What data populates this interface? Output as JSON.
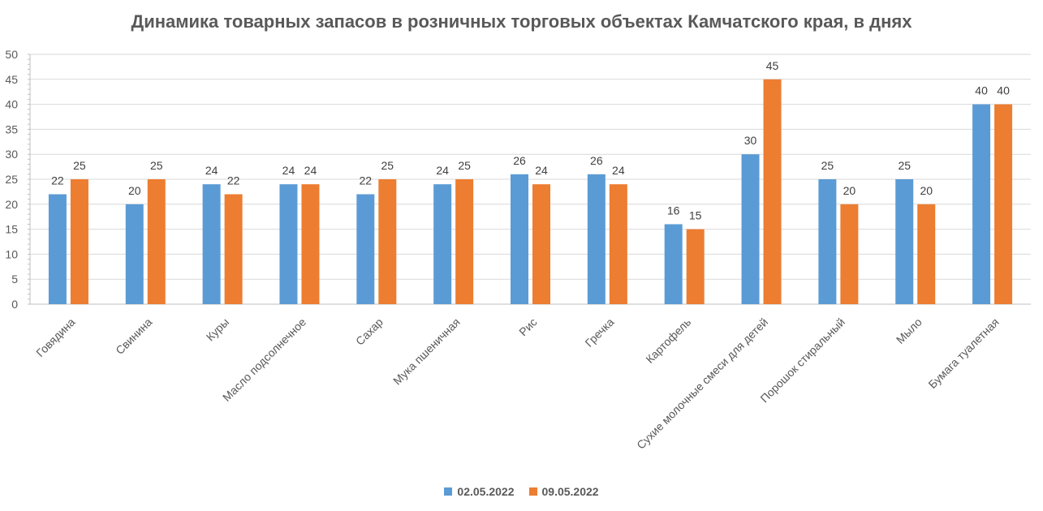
{
  "chart_data": {
    "type": "bar",
    "title": "Динамика товарных запасов в розничных торговых объектах Камчатского края, в днях",
    "xlabel": "",
    "ylabel": "",
    "ylim": [
      0,
      50
    ],
    "yticks": [
      0,
      5,
      10,
      15,
      20,
      25,
      30,
      35,
      40,
      45,
      50
    ],
    "grid": true,
    "legend_position": "bottom",
    "categories": [
      "Говядина",
      "Свинина",
      "Куры",
      "Масло подсолнечное",
      "Сахар",
      "Мука пшеничная",
      "Рис",
      "Гречка",
      "Картофель",
      "Сухие молочные смеси для детей",
      "Порошок стиральный",
      "Мыло",
      "Бумага туалетная"
    ],
    "series": [
      {
        "name": "02.05.2022",
        "color": "#5B9BD5",
        "values": [
          22,
          20,
          24,
          24,
          22,
          24,
          26,
          26,
          16,
          30,
          25,
          25,
          40
        ]
      },
      {
        "name": "09.05.2022",
        "color": "#ED7D31",
        "values": [
          25,
          25,
          22,
          24,
          25,
          25,
          24,
          24,
          15,
          45,
          20,
          20,
          40
        ]
      }
    ]
  }
}
